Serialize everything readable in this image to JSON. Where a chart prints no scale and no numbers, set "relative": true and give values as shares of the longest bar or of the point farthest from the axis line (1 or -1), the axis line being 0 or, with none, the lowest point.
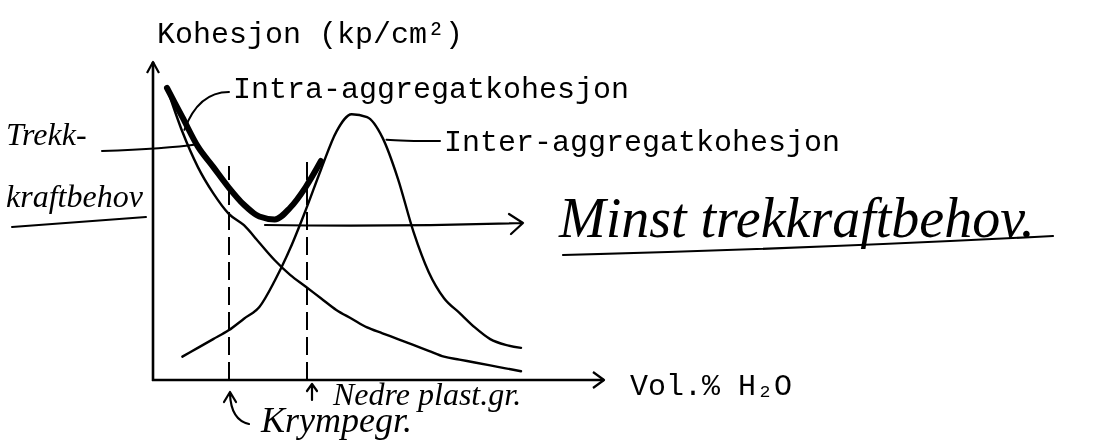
{
  "chart_data": {
    "type": "line",
    "relative": true,
    "legend": "top",
    "ylabel": "Kohesjon (kp/cm²)",
    "xlabel": "Vol.% H₂O",
    "categories": [
      null,
      null,
      null,
      null,
      null,
      null,
      null,
      null,
      null,
      null,
      null,
      null,
      null,
      null,
      null,
      null,
      null,
      null,
      null,
      null,
      null,
      null,
      null,
      null
    ],
    "series": [
      {
        "name": "Intra-aggregatkohesjon",
        "color": "#000000",
        "values": [
          1.0,
          0.85,
          0.73,
          0.64,
          0.57,
          0.53,
          0.47,
          0.41,
          0.36,
          0.32,
          0.28,
          0.24,
          0.21,
          0.18,
          0.16,
          0.14,
          0.12,
          0.1,
          0.08,
          0.07,
          0.06,
          0.05,
          0.04,
          0.03
        ]
      },
      {
        "name": "Inter-aggregatkohesjon",
        "color": "#000000",
        "values": [
          null,
          0.08,
          0.11,
          0.14,
          0.17,
          0.21,
          0.25,
          0.34,
          0.45,
          0.58,
          0.72,
          0.85,
          0.91,
          0.9,
          0.83,
          0.69,
          0.51,
          0.37,
          0.28,
          0.23,
          0.18,
          0.14,
          0.12,
          0.11
        ]
      },
      {
        "name": "Trekk-kraftbehov",
        "color": "#000000",
        "values": [
          1.0,
          0.9,
          0.8,
          0.73,
          0.66,
          0.6,
          0.56,
          0.55,
          0.59,
          0.66,
          0.75,
          null,
          null,
          null,
          null,
          null,
          null,
          null,
          null,
          null,
          null,
          null,
          null,
          null
        ]
      }
    ],
    "annotations": [
      "Minst trekkraftbehov.",
      "Krympegr.",
      "Nedre plast.gr."
    ]
  }
}
